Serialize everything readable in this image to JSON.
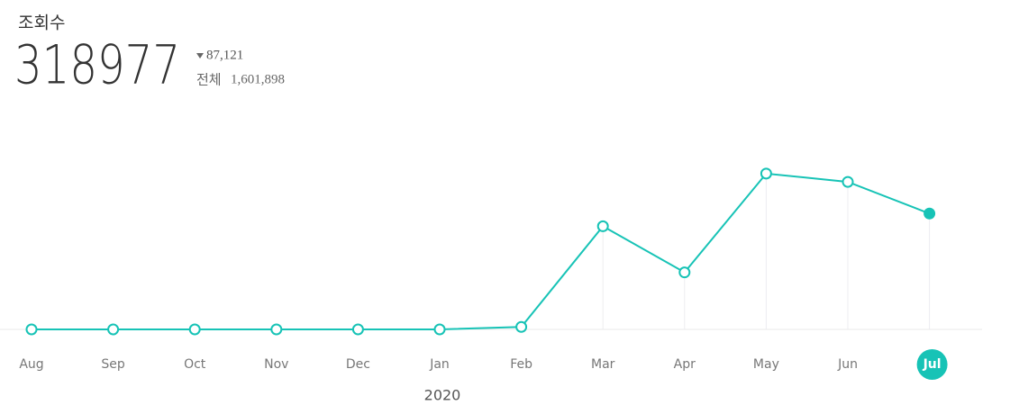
{
  "header": {
    "title": "조회수",
    "views": "318977",
    "change": "87,121",
    "total_label": "전체",
    "total": "1,601,898"
  },
  "chart_data": {
    "type": "line",
    "categories": [
      "Aug",
      "Sep",
      "Oct",
      "Nov",
      "Dec",
      "Jan",
      "Feb",
      "Mar",
      "Apr",
      "May",
      "Jun",
      "Jul"
    ],
    "x_label": "2020",
    "series": [
      {
        "color": "#17c3b6",
        "values": [
          0,
          0,
          0,
          0,
          0,
          0,
          6823,
          284000,
          157000,
          429000,
          406098,
          318977
        ]
      }
    ],
    "ylim": [
      0,
      560000
    ],
    "selected": 11
  }
}
